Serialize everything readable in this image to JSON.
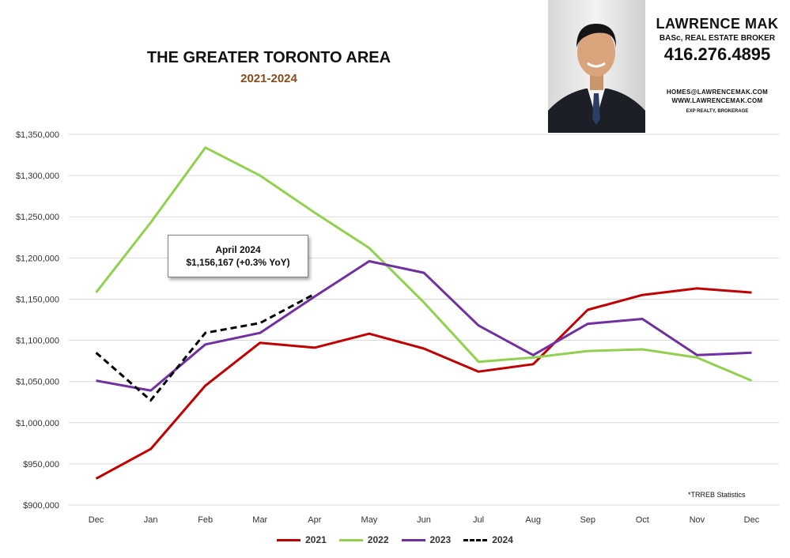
{
  "header": {
    "title": "THE GREATER TORONTO AREA",
    "subtitle": "2021-2024"
  },
  "contact": {
    "name": "LAWRENCE MAK",
    "credentials": "BASc, REAL ESTATE BROKER",
    "phone": "416.276.4895",
    "email": "HOMES@LAWRENCEMAK.COM",
    "website": "WWW.LAWRENCEMAK.COM",
    "brokerage": "EXP REALTY, BROKERAGE"
  },
  "callout": {
    "line1": "April 2024",
    "line2": "$1,156,167  (+0.3%  YoY)"
  },
  "source_note": "*TRREB Statistics",
  "chart_data": {
    "type": "line",
    "title": "THE GREATER TORONTO AREA",
    "subtitle": "2021-2024",
    "categories": [
      "Dec",
      "Jan",
      "Feb",
      "Mar",
      "Apr",
      "May",
      "Jun",
      "Jul",
      "Aug",
      "Sep",
      "Oct",
      "Nov",
      "Dec"
    ],
    "ylim": [
      900000,
      1350000
    ],
    "yticks": [
      900000,
      950000,
      1000000,
      1050000,
      1100000,
      1150000,
      1200000,
      1250000,
      1300000,
      1350000
    ],
    "ytick_labels": [
      "$900,000",
      "$950,000",
      "$1,000,000",
      "$1,050,000",
      "$1,100,000",
      "$1,150,000",
      "$1,200,000",
      "$1,250,000",
      "$1,300,000",
      "$1,350,000"
    ],
    "grid": true,
    "legend": "bottom",
    "series": [
      {
        "name": "2021",
        "color": "#c00000",
        "dash": false,
        "values": [
          932000,
          968000,
          1045000,
          1097000,
          1091000,
          1108000,
          1090000,
          1062000,
          1071000,
          1137000,
          1155000,
          1163000,
          1158000
        ]
      },
      {
        "name": "2022",
        "color": "#92d050",
        "dash": false,
        "values": [
          1158000,
          1243000,
          1334000,
          1300000,
          1255000,
          1212000,
          1146000,
          1074000,
          1079000,
          1087000,
          1089000,
          1079000,
          1051000
        ]
      },
      {
        "name": "2023",
        "color": "#7030a0",
        "dash": false,
        "values": [
          1051000,
          1039000,
          1095000,
          1109000,
          1153000,
          1196000,
          1182000,
          1118000,
          1082000,
          1120000,
          1126000,
          1082000,
          1085000
        ]
      },
      {
        "name": "2024",
        "color": "#000000",
        "dash": true,
        "values": [
          1085000,
          1027000,
          1109000,
          1121000,
          1156167,
          null,
          null,
          null,
          null,
          null,
          null,
          null,
          null
        ]
      }
    ]
  }
}
